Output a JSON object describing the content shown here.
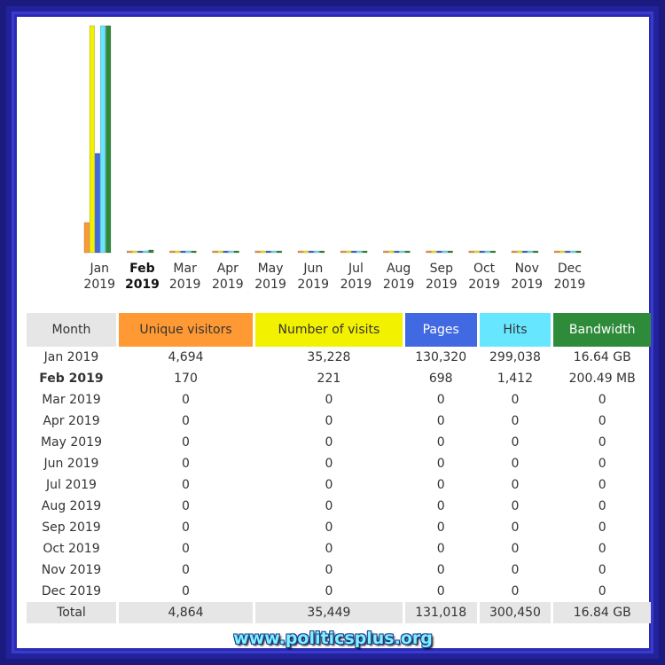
{
  "colors": {
    "unique_visitors": "#ff9933",
    "visits": "#f2f200",
    "pages": "#4169e1",
    "hits": "#66e6ff",
    "bandwidth": "#2e8b3a",
    "header_gray": "#e6e6e6"
  },
  "table": {
    "headers": [
      "Month",
      "Unique visitors",
      "Number of visits",
      "Pages",
      "Hits",
      "Bandwidth"
    ],
    "rows": [
      {
        "month": "Jan 2019",
        "uv": "4,694",
        "visits": "35,228",
        "pages": "130,320",
        "hits": "299,038",
        "bw": "16.64 GB"
      },
      {
        "month": "Feb 2019",
        "uv": "170",
        "visits": "221",
        "pages": "698",
        "hits": "1,412",
        "bw": "200.49 MB"
      },
      {
        "month": "Mar 2019",
        "uv": "0",
        "visits": "0",
        "pages": "0",
        "hits": "0",
        "bw": "0"
      },
      {
        "month": "Apr 2019",
        "uv": "0",
        "visits": "0",
        "pages": "0",
        "hits": "0",
        "bw": "0"
      },
      {
        "month": "May 2019",
        "uv": "0",
        "visits": "0",
        "pages": "0",
        "hits": "0",
        "bw": "0"
      },
      {
        "month": "Jun 2019",
        "uv": "0",
        "visits": "0",
        "pages": "0",
        "hits": "0",
        "bw": "0"
      },
      {
        "month": "Jul 2019",
        "uv": "0",
        "visits": "0",
        "pages": "0",
        "hits": "0",
        "bw": "0"
      },
      {
        "month": "Aug 2019",
        "uv": "0",
        "visits": "0",
        "pages": "0",
        "hits": "0",
        "bw": "0"
      },
      {
        "month": "Sep 2019",
        "uv": "0",
        "visits": "0",
        "pages": "0",
        "hits": "0",
        "bw": "0"
      },
      {
        "month": "Oct 2019",
        "uv": "0",
        "visits": "0",
        "pages": "0",
        "hits": "0",
        "bw": "0"
      },
      {
        "month": "Nov 2019",
        "uv": "0",
        "visits": "0",
        "pages": "0",
        "hits": "0",
        "bw": "0"
      },
      {
        "month": "Dec 2019",
        "uv": "0",
        "visits": "0",
        "pages": "0",
        "hits": "0",
        "bw": "0"
      }
    ],
    "total": {
      "month": "Total",
      "uv": "4,864",
      "visits": "35,449",
      "pages": "131,018",
      "hits": "300,450",
      "bw": "16.84 GB"
    }
  },
  "watermark": "www.politicsplus.org",
  "chart_data": {
    "type": "bar",
    "categories": [
      {
        "month": "Jan",
        "year": "2019"
      },
      {
        "month": "Feb",
        "year": "2019"
      },
      {
        "month": "Mar",
        "year": "2019"
      },
      {
        "month": "Apr",
        "year": "2019"
      },
      {
        "month": "May",
        "year": "2019"
      },
      {
        "month": "Jun",
        "year": "2019"
      },
      {
        "month": "Jul",
        "year": "2019"
      },
      {
        "month": "Aug",
        "year": "2019"
      },
      {
        "month": "Sep",
        "year": "2019"
      },
      {
        "month": "Oct",
        "year": "2019"
      },
      {
        "month": "Nov",
        "year": "2019"
      },
      {
        "month": "Dec",
        "year": "2019"
      }
    ],
    "highlight_category": "Feb",
    "series": [
      {
        "name": "Unique visitors",
        "color": "#ff9933",
        "values": [
          4694,
          170,
          0,
          0,
          0,
          0,
          0,
          0,
          0,
          0,
          0,
          0
        ]
      },
      {
        "name": "Number of visits",
        "color": "#f2f200",
        "values": [
          35228,
          221,
          0,
          0,
          0,
          0,
          0,
          0,
          0,
          0,
          0,
          0
        ]
      },
      {
        "name": "Pages",
        "color": "#4169e1",
        "values": [
          130320,
          698,
          0,
          0,
          0,
          0,
          0,
          0,
          0,
          0,
          0,
          0
        ]
      },
      {
        "name": "Hits",
        "color": "#66e6ff",
        "values": [
          299038,
          1412,
          0,
          0,
          0,
          0,
          0,
          0,
          0,
          0,
          0,
          0
        ]
      },
      {
        "name": "Bandwidth",
        "color": "#2e8b3a",
        "values": [
          16.64,
          0.2005,
          0,
          0,
          0,
          0,
          0,
          0,
          0,
          0,
          0,
          0
        ]
      }
    ],
    "grouping": "visitors and visits share one scale; pages and hits share one scale; bandwidth has its own scale"
  }
}
